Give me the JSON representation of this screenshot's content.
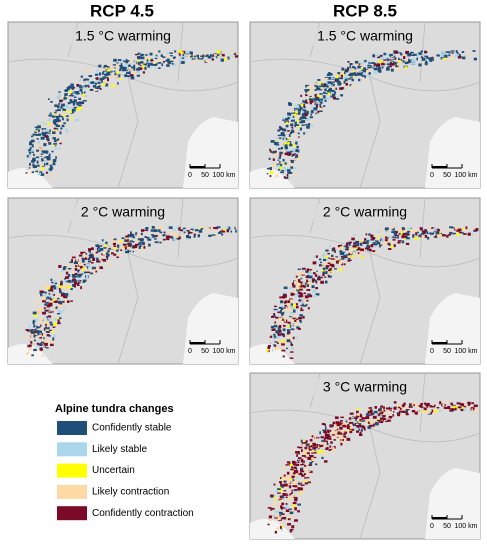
{
  "columns": [
    "RCP 4.5",
    "RCP 8.5"
  ],
  "panels": [
    {
      "title": "1.5 °C warming"
    },
    {
      "title": "1.5 °C warming"
    },
    {
      "title": "2 °C warming"
    },
    {
      "title": "2 °C warming"
    },
    {
      "title": "3 °C warming"
    }
  ],
  "scale_bar": {
    "labels": [
      "0",
      "50",
      "100 km"
    ]
  },
  "legend": {
    "title": "Alpine tundra changes",
    "items": [
      {
        "label": "Confidently stable",
        "color": "#1f4e79"
      },
      {
        "label": "Likely stable",
        "color": "#a9d6ea"
      },
      {
        "label": "Uncertain",
        "color": "#ffff00"
      },
      {
        "label": "Likely contraction",
        "color": "#fdd9a5"
      },
      {
        "label": "Confidently contraction",
        "color": "#7b0a26"
      }
    ]
  }
}
